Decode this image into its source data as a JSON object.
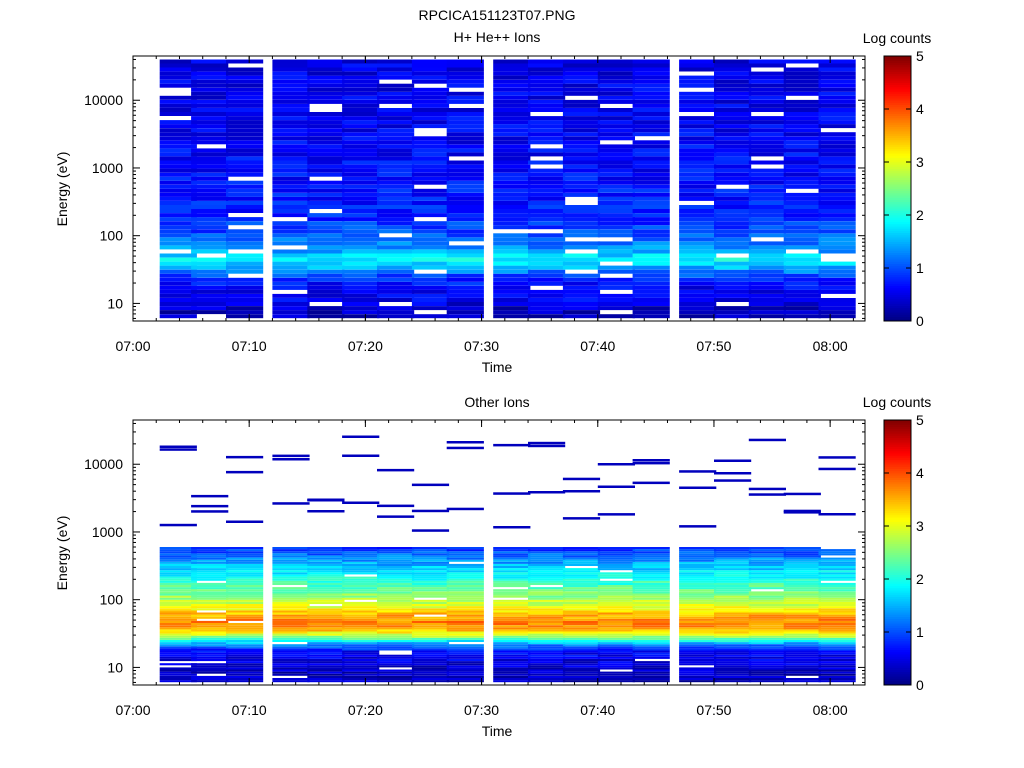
{
  "figure": {
    "title": "RPCICA151123T07.PNG"
  },
  "colorbar": {
    "label": "Log counts",
    "range": [
      0,
      5
    ],
    "ticks": [
      "0",
      "1",
      "2",
      "3",
      "4",
      "5"
    ],
    "colormap": "jet"
  },
  "chart_data": [
    {
      "type": "heatmap",
      "title": "H+ He++ Ions",
      "xlabel": "Time",
      "ylabel": "Energy (eV)",
      "y_scale": "log",
      "ylim": [
        5.5,
        45000
      ],
      "xlim": [
        "07:00",
        "08:03"
      ],
      "x_ticks": [
        "07:00",
        "07:10",
        "07:20",
        "07:30",
        "07:40",
        "07:50",
        "08:00"
      ],
      "y_ticks": [
        "10",
        "100",
        "1000",
        "10000"
      ],
      "time_bins_start": [
        "07:02",
        "07:05",
        "07:08",
        "07:12",
        "07:15",
        "07:18",
        "07:21",
        "07:24",
        "07:27",
        "07:31",
        "07:34",
        "07:37",
        "07:40",
        "07:43",
        "07:47",
        "07:50",
        "07:53",
        "07:56",
        "07:59"
      ],
      "bin_width_min": 3.2,
      "energy_profile": {
        "energy_eV": [
          8,
          10,
          13,
          17,
          22,
          28,
          35,
          45,
          60,
          80,
          110,
          150,
          250,
          500,
          1000,
          3000,
          10000,
          40000
        ],
        "log_counts": [
          0.3,
          0.5,
          0.6,
          0.6,
          0.8,
          1.1,
          1.6,
          1.9,
          1.4,
          1.2,
          1.0,
          0.9,
          0.75,
          0.7,
          0.65,
          0.6,
          0.55,
          0.5
        ]
      },
      "colorbar_label": "Log counts"
    },
    {
      "type": "heatmap",
      "title": "Other Ions",
      "xlabel": "Time",
      "ylabel": "Energy (eV)",
      "y_scale": "log",
      "ylim": [
        5.5,
        45000
      ],
      "xlim": [
        "07:00",
        "08:03"
      ],
      "x_ticks": [
        "07:00",
        "07:10",
        "07:20",
        "07:30",
        "07:40",
        "07:50",
        "08:00"
      ],
      "y_ticks": [
        "10",
        "100",
        "1000",
        "10000"
      ],
      "time_bins_start": [
        "07:02",
        "07:05",
        "07:08",
        "07:12",
        "07:15",
        "07:18",
        "07:21",
        "07:24",
        "07:27",
        "07:31",
        "07:34",
        "07:37",
        "07:40",
        "07:43",
        "07:47",
        "07:50",
        "07:53",
        "07:56",
        "07:59"
      ],
      "bin_width_min": 3.2,
      "energy_profile": {
        "energy_eV": [
          8,
          10,
          13,
          17,
          22,
          28,
          35,
          45,
          60,
          80,
          110,
          150,
          250,
          400,
          600
        ],
        "log_counts": [
          0.3,
          0.4,
          0.5,
          0.6,
          1.3,
          2.6,
          3.4,
          3.8,
          3.5,
          3.0,
          2.6,
          2.3,
          1.8,
          1.3,
          0.8
        ]
      },
      "colorbar_label": "Log counts"
    }
  ]
}
